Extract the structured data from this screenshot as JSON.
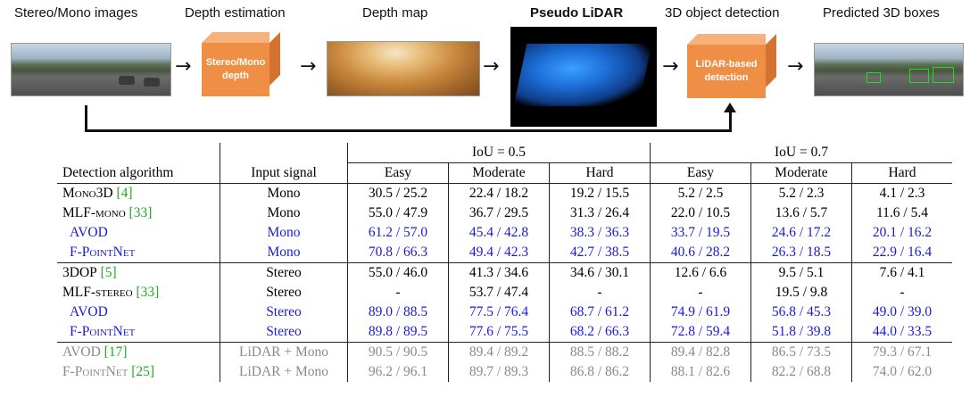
{
  "pipeline": {
    "stages": [
      {
        "label": "Stereo/Mono images"
      },
      {
        "label": "Depth estimation"
      },
      {
        "label": "Depth map"
      },
      {
        "label": "Pseudo LiDAR"
      },
      {
        "label": "3D object detection"
      },
      {
        "label": "Predicted 3D boxes"
      }
    ],
    "depth_block_line1": "Stereo/Mono",
    "depth_block_line2": "depth",
    "detection_block_line1": "LiDAR-based",
    "detection_block_line2": "detection",
    "arrow_glyph": "→",
    "colors": {
      "block": "#ef8f45",
      "lidar": "#1c6dd6",
      "boxes": "#19e219"
    }
  },
  "table": {
    "iou_groups": [
      "IoU = 0.5",
      "IoU = 0.7"
    ],
    "header": {
      "algorithm": "Detection algorithm",
      "input": "Input signal",
      "difficulties": [
        "Easy",
        "Moderate",
        "Hard",
        "Easy",
        "Moderate",
        "Hard"
      ]
    },
    "rows": [
      {
        "algorithm": "Mono3D",
        "cite": "[4]",
        "input": "Mono",
        "values": [
          "30.5 / 25.2",
          "22.4 / 18.2",
          "19.2 / 15.5",
          "5.2 / 2.5",
          "5.2 / 2.3",
          "4.1 / 2.3"
        ]
      },
      {
        "algorithm": "MLF-mono",
        "cite": "[33]",
        "input": "Mono",
        "values": [
          "55.0 / 47.9",
          "36.7 / 29.5",
          "31.3 / 26.4",
          "22.0 / 10.5",
          "13.6 / 5.7",
          "11.6 / 5.4"
        ]
      },
      {
        "algorithm": "AVOD",
        "cite": "",
        "input": "Mono",
        "values": [
          "61.2 / 57.0",
          "45.4 / 42.8",
          "38.3 / 36.3",
          "33.7 / 19.5",
          "24.6 / 17.2",
          "20.1 / 16.2"
        ]
      },
      {
        "algorithm": "F-PointNet",
        "cite": "",
        "input": "Mono",
        "values": [
          "70.8 / 66.3",
          "49.4 / 42.3",
          "42.7 / 38.5",
          "40.6 / 28.2",
          "26.3 / 18.5",
          "22.9 / 16.4"
        ]
      },
      {
        "algorithm": "3DOP",
        "cite": "[5]",
        "input": "Stereo",
        "values": [
          "55.0 / 46.0",
          "41.3 / 34.6",
          "34.6 / 30.1",
          "12.6 / 6.6",
          "9.5 / 5.1",
          "7.6 / 4.1"
        ]
      },
      {
        "algorithm": "MLF-stereo",
        "cite": "[33]",
        "input": "Stereo",
        "values": [
          "-",
          "53.7 / 47.4",
          "-",
          "-",
          "19.5 / 9.8",
          "-"
        ]
      },
      {
        "algorithm": "AVOD",
        "cite": "",
        "input": "Stereo",
        "values": [
          "89.0 / 88.5",
          "77.5 / 76.4",
          "68.7 / 61.2",
          "74.9 / 61.9",
          "56.8 / 45.3",
          "49.0 / 39.0"
        ]
      },
      {
        "algorithm": "F-PointNet",
        "cite": "",
        "input": "Stereo",
        "values": [
          "89.8 / 89.5",
          "77.6 / 75.5",
          "68.2 / 66.3",
          "72.8 / 59.4",
          "51.8 / 39.8",
          "44.0 / 33.5"
        ]
      },
      {
        "algorithm": "AVOD",
        "cite": "[17]",
        "input": "LiDAR + Mono",
        "values": [
          "90.5 / 90.5",
          "89.4 / 89.2",
          "88.5 / 88.2",
          "89.4 / 82.8",
          "86.5 / 73.5",
          "79.3 / 67.1"
        ]
      },
      {
        "algorithm": "F-PointNet",
        "cite": "[25]",
        "input": "LiDAR + Mono",
        "values": [
          "96.2 / 96.1",
          "89.7 / 89.3",
          "86.8 / 86.2",
          "88.1 / 82.6",
          "82.2 / 68.8",
          "74.0 / 62.0"
        ]
      }
    ],
    "colors": {
      "ours": "#1a1adb",
      "lidar": "#8a8a8a",
      "cite": "#22a822"
    }
  }
}
